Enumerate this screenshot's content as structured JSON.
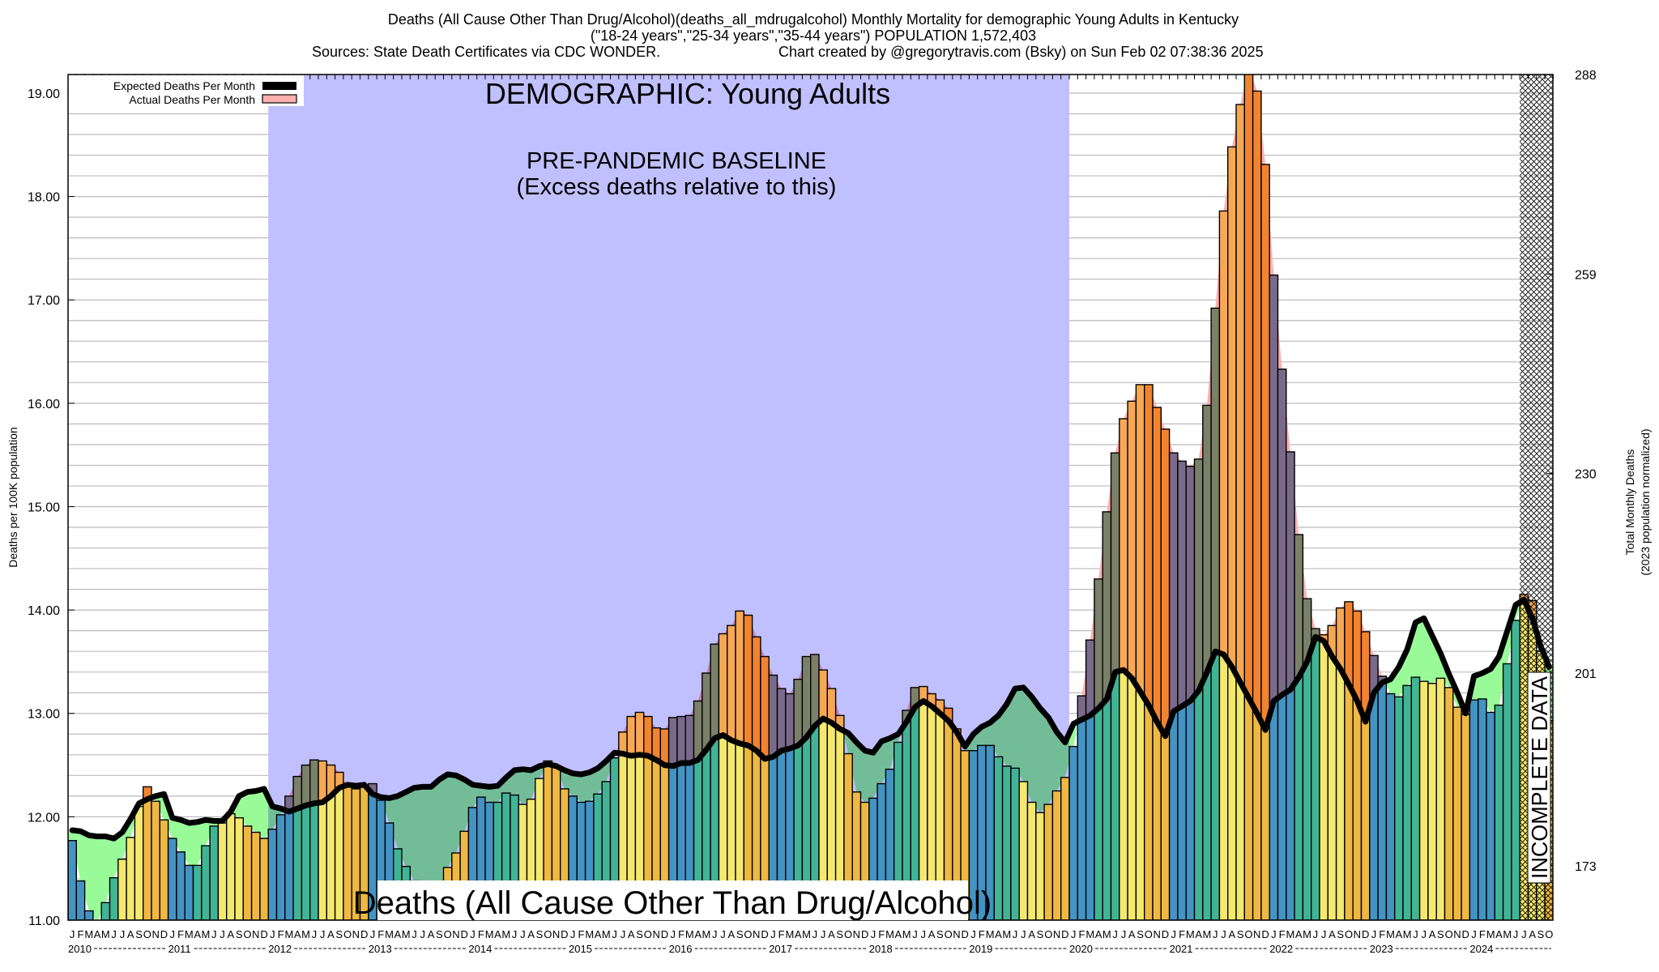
{
  "header": {
    "title_line1": "Deaths (All Cause Other Than Drug/Alcohol)(deaths_all_mdrugalcohol) Monthly Mortality for demographic Young Adults in Kentucky",
    "title_line2": "(\"18-24 years\",\"25-34 years\",\"35-44 years\") POPULATION 1,572,403",
    "sources": "Sources: State Death Certificates via CDC WONDER.",
    "credit": "Chart created by @gregorytravis.com (Bsky) on Sun Feb 02 07:38:36 2025"
  },
  "legend": {
    "placement": "top-left",
    "expected_label": "Expected Deaths Per Month",
    "actual_label": "Actual Deaths Per Month"
  },
  "annotations": {
    "demographic": "DEMOGRAPHIC: Young Adults",
    "baseline_line1": "PRE-PANDEMIC BASELINE",
    "baseline_line2": "(Excess deaths relative to this)",
    "cause_label": "Deaths (All Cause Other Than Drug/Alcohol)",
    "incomplete": "INCOMPLETE DATA"
  },
  "colors": {
    "season_jan_mar": "#4393c3",
    "season_apr_jun": "#41b496",
    "season_jul_sep": "#f4e86e",
    "season_oct_dec": "#efb843",
    "excess_jan_mar": "#7a6a8a",
    "excess_apr_jun": "#7b8068",
    "excess_jul_sep": "#f7a855",
    "excess_oct_dec": "#f2832f",
    "excess_fill": "#ffb0b0",
    "deficit_fill": "#98fb98",
    "baseline_region": "#c0c0ff",
    "expected_line": "#000000",
    "gridline": "#bbbbbb"
  },
  "chart_data": {
    "type": "bar",
    "title": "Deaths (All Cause Other Than Drug/Alcohol)(deaths_all_mdrugalcohol) Monthly Mortality for demographic Young Adults in Kentucky",
    "ylabel": "Deaths per 100K population",
    "y2label_line1": "Total Monthly Deaths",
    "y2label_line2": "(2023 population normalized)",
    "ylim": [
      11.0,
      19.18
    ],
    "y2lim": [
      165.1,
      288.0
    ],
    "yticks": [
      "11.00",
      "12.00",
      "13.00",
      "14.00",
      "15.00",
      "16.00",
      "17.00",
      "18.00",
      "19.00"
    ],
    "y2ticks": [
      "173",
      "201",
      "230",
      "259",
      "288"
    ],
    "grid": true,
    "start_month": "2010-01",
    "end_month": "2024-10",
    "month_letters": [
      "J",
      "F",
      "M",
      "A",
      "M",
      "J",
      "J",
      "A",
      "S",
      "O",
      "N",
      "D"
    ],
    "years": [
      "2010",
      "2011",
      "2012",
      "2013",
      "2014",
      "2015",
      "2016",
      "2017",
      "2018",
      "2019",
      "2020",
      "2021",
      "2022",
      "2023",
      "2024"
    ],
    "baseline_period": [
      "2012-01",
      "2019-12"
    ],
    "incomplete_period": [
      "2024-07",
      "2024-10"
    ],
    "series": [
      {
        "name": "Actual Deaths Per Month",
        "values": [
          11.77,
          11.38,
          11.09,
          10.98,
          11.17,
          11.41,
          11.59,
          11.8,
          12.1,
          12.29,
          12.15,
          11.97,
          11.79,
          11.66,
          11.53,
          11.53,
          11.72,
          11.91,
          11.94,
          12.03,
          11.99,
          11.91,
          11.85,
          11.79,
          11.88,
          12.02,
          12.2,
          12.39,
          12.5,
          12.55,
          12.54,
          12.5,
          12.43,
          12.29,
          12.27,
          12.3,
          12.32,
          12.16,
          11.94,
          11.69,
          11.52,
          11.38,
          11.13,
          11.16,
          11.3,
          11.51,
          11.65,
          11.86,
          12.09,
          12.19,
          12.14,
          12.14,
          12.23,
          12.21,
          12.12,
          12.17,
          12.37,
          12.54,
          12.49,
          12.27,
          12.2,
          12.14,
          12.15,
          12.22,
          12.34,
          12.57,
          12.82,
          12.97,
          13.01,
          12.97,
          12.86,
          12.85,
          12.96,
          12.97,
          12.98,
          13.12,
          13.39,
          13.67,
          13.77,
          13.85,
          13.99,
          13.95,
          13.74,
          13.55,
          13.37,
          13.24,
          13.19,
          13.33,
          13.55,
          13.57,
          13.42,
          13.24,
          12.98,
          12.61,
          12.24,
          12.14,
          12.18,
          12.32,
          12.46,
          12.72,
          13.03,
          13.25,
          13.26,
          13.19,
          13.13,
          13.05,
          12.85,
          12.64,
          12.64,
          12.69,
          12.69,
          12.58,
          12.49,
          12.47,
          12.34,
          12.14,
          12.04,
          12.12,
          12.25,
          12.38,
          12.68,
          13.17,
          13.71,
          14.3,
          14.95,
          15.52,
          15.85,
          16.02,
          16.18,
          16.18,
          15.96,
          15.75,
          15.52,
          15.44,
          15.39,
          15.46,
          15.98,
          16.92,
          17.86,
          18.48,
          18.89,
          19.25,
          19.02,
          18.31,
          17.24,
          16.33,
          15.53,
          14.73,
          14.11,
          13.82,
          13.76,
          13.85,
          14.02,
          14.08,
          13.99,
          13.79,
          13.56,
          13.36,
          13.19,
          13.16,
          13.27,
          13.35,
          13.31,
          13.29,
          13.34,
          13.25,
          13.06,
          12.99,
          13.13,
          13.14,
          13.01,
          13.08,
          13.48,
          13.9,
          14.15,
          14.09,
          13.6,
          12.93
        ]
      },
      {
        "name": "Expected Deaths Per Month",
        "values": [
          11.87,
          11.86,
          11.82,
          11.81,
          11.81,
          11.79,
          11.85,
          11.98,
          12.13,
          12.17,
          12.2,
          12.22,
          11.99,
          11.97,
          11.94,
          11.95,
          11.97,
          11.96,
          11.96,
          12.05,
          12.2,
          12.24,
          12.25,
          12.27,
          12.1,
          12.08,
          12.05,
          12.08,
          12.11,
          12.13,
          12.14,
          12.2,
          12.28,
          12.31,
          12.3,
          12.31,
          12.22,
          12.19,
          12.18,
          12.2,
          12.24,
          12.28,
          12.29,
          12.29,
          12.36,
          12.41,
          12.4,
          12.36,
          12.31,
          12.3,
          12.29,
          12.3,
          12.38,
          12.45,
          12.46,
          12.45,
          12.49,
          12.51,
          12.49,
          12.45,
          12.42,
          12.41,
          12.43,
          12.47,
          12.54,
          12.62,
          12.61,
          12.59,
          12.6,
          12.59,
          12.55,
          12.5,
          12.49,
          12.52,
          12.52,
          12.55,
          12.65,
          12.76,
          12.79,
          12.74,
          12.71,
          12.69,
          12.64,
          12.56,
          12.58,
          12.64,
          12.66,
          12.69,
          12.77,
          12.88,
          12.95,
          12.91,
          12.85,
          12.81,
          12.72,
          12.64,
          12.62,
          12.73,
          12.76,
          12.8,
          12.92,
          13.06,
          13.12,
          13.07,
          13.0,
          12.93,
          12.82,
          12.68,
          12.8,
          12.87,
          12.91,
          12.98,
          13.09,
          13.24,
          13.25,
          13.16,
          13.05,
          12.96,
          12.82,
          12.72,
          12.9,
          12.94,
          12.98,
          13.05,
          13.14,
          13.4,
          13.42,
          13.34,
          13.21,
          13.08,
          12.92,
          12.78,
          13.02,
          13.07,
          13.12,
          13.22,
          13.4,
          13.6,
          13.57,
          13.45,
          13.3,
          13.15,
          13.0,
          12.84,
          13.12,
          13.18,
          13.23,
          13.35,
          13.5,
          13.74,
          13.7,
          13.55,
          13.43,
          13.28,
          13.12,
          12.92,
          13.2,
          13.3,
          13.33,
          13.45,
          13.62,
          13.88,
          13.92,
          13.75,
          13.58,
          13.38,
          13.2,
          13.0,
          13.36,
          13.39,
          13.43,
          13.55,
          13.8,
          14.05,
          14.1,
          13.92,
          13.65,
          13.45
        ]
      }
    ]
  }
}
